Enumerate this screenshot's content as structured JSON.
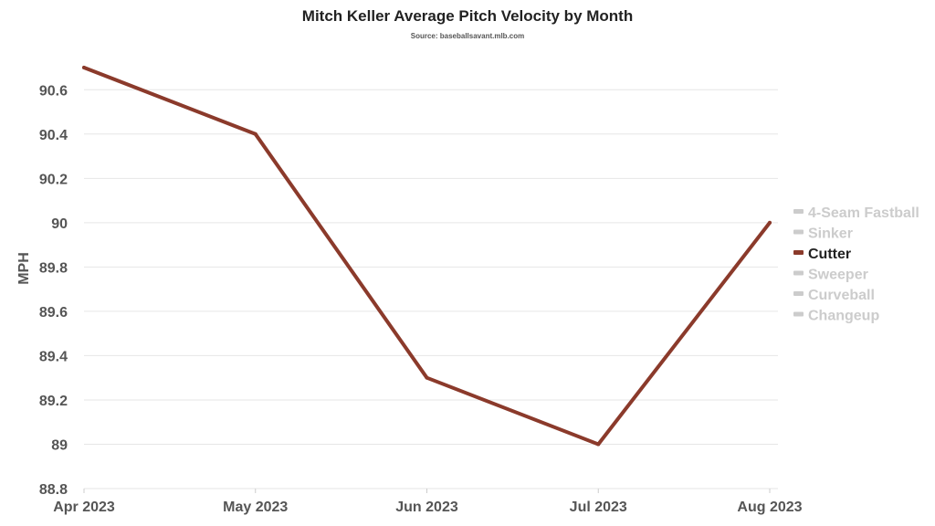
{
  "chart_data": {
    "type": "line",
    "title": "Mitch Keller Average Pitch Velocity by Month",
    "subtitle": "Source: baseballsavant.mlb.com",
    "xlabel": "",
    "ylabel": "MPH",
    "categories": [
      "Apr 2023",
      "May 2023",
      "Jun 2023",
      "Jul 2023",
      "Aug 2023"
    ],
    "ylim": [
      88.8,
      90.7
    ],
    "yticks": [
      "88.8",
      "89",
      "89.2",
      "89.4",
      "89.6",
      "89.8",
      "90",
      "90.2",
      "90.4",
      "90.6"
    ],
    "grid": true,
    "legend_position": "right",
    "series": [
      {
        "name": "Cutter",
        "color": "#8b3a2b",
        "values": [
          90.7,
          90.4,
          89.3,
          89.0,
          90.0
        ]
      }
    ],
    "legend": [
      {
        "name": "4-Seam Fastball",
        "active": false
      },
      {
        "name": "Sinker",
        "active": false
      },
      {
        "name": "Cutter",
        "active": true
      },
      {
        "name": "Sweeper",
        "active": false
      },
      {
        "name": "Curveball",
        "active": false
      },
      {
        "name": "Changeup",
        "active": false
      }
    ],
    "colors": {
      "active_legend": "#222222",
      "inactive_legend": "#cccccc",
      "grid": "#e6e6e6"
    }
  }
}
